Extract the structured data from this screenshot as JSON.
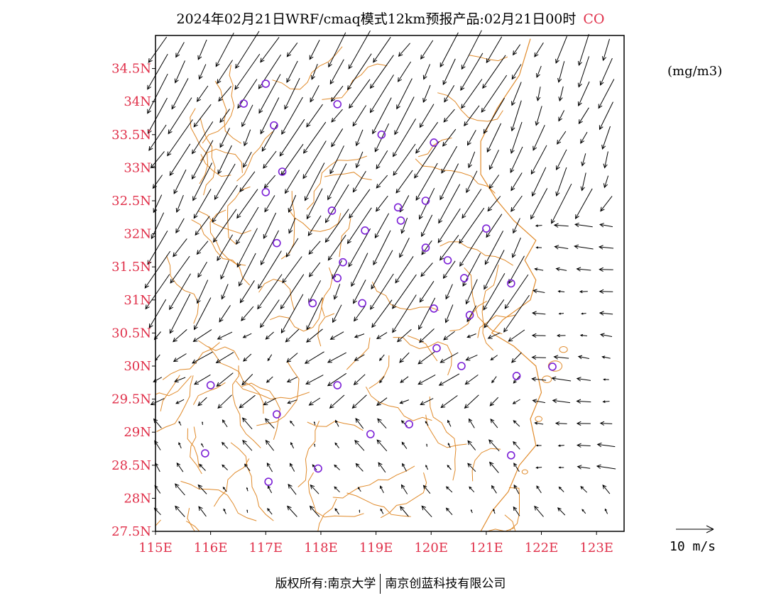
{
  "title": {
    "main": "2024年02月21日WRF/cmaq模式12km预报产品:02月21日00时",
    "species": "CO"
  },
  "unit_label": "(mg/m3)",
  "reference_vector": {
    "label": "10 m/s",
    "speed_ms": 10
  },
  "copyright": {
    "owner": "版权所有:南京大学",
    "partner": "南京创蓝科技有限公司"
  },
  "colors": {
    "axis_labels": "#e0304a",
    "boundaries": "#e08a2a",
    "stations": "#7b1fd6",
    "wind": "#000000"
  },
  "map": {
    "lon_range": [
      115,
      123.5
    ],
    "lat_range": [
      27.5,
      35.0
    ],
    "x_ticks": [
      {
        "value": 115,
        "label": "115E"
      },
      {
        "value": 116,
        "label": "116E"
      },
      {
        "value": 117,
        "label": "117E"
      },
      {
        "value": 118,
        "label": "118E"
      },
      {
        "value": 119,
        "label": "119E"
      },
      {
        "value": 120,
        "label": "120E"
      },
      {
        "value": 121,
        "label": "121E"
      },
      {
        "value": 122,
        "label": "122E"
      },
      {
        "value": 123,
        "label": "123E"
      }
    ],
    "y_ticks": [
      {
        "value": 27.5,
        "label": "27.5N"
      },
      {
        "value": 28,
        "label": "28N"
      },
      {
        "value": 28.5,
        "label": "28.5N"
      },
      {
        "value": 29,
        "label": "29N"
      },
      {
        "value": 29.5,
        "label": "29.5N"
      },
      {
        "value": 30,
        "label": "30N"
      },
      {
        "value": 30.5,
        "label": "30.5N"
      },
      {
        "value": 31,
        "label": "31N"
      },
      {
        "value": 31.5,
        "label": "31.5N"
      },
      {
        "value": 32,
        "label": "32N"
      },
      {
        "value": 32.5,
        "label": "32.5N"
      },
      {
        "value": 33,
        "label": "33N"
      },
      {
        "value": 33.5,
        "label": "33.5N"
      },
      {
        "value": 34,
        "label": "34N"
      },
      {
        "value": 34.5,
        "label": "34.5N"
      }
    ],
    "stations": [
      [
        117.0,
        34.27
      ],
      [
        116.6,
        33.97
      ],
      [
        118.3,
        33.96
      ],
      [
        117.15,
        33.64
      ],
      [
        119.1,
        33.5
      ],
      [
        120.05,
        33.38
      ],
      [
        117.3,
        32.94
      ],
      [
        117.0,
        32.63
      ],
      [
        118.2,
        32.35
      ],
      [
        119.4,
        32.4
      ],
      [
        119.9,
        32.5
      ],
      [
        119.45,
        32.2
      ],
      [
        118.8,
        32.05
      ],
      [
        121.0,
        32.08
      ],
      [
        117.2,
        31.86
      ],
      [
        119.9,
        31.79
      ],
      [
        118.4,
        31.57
      ],
      [
        120.3,
        31.6
      ],
      [
        118.3,
        31.33
      ],
      [
        120.6,
        31.33
      ],
      [
        121.45,
        31.25
      ],
      [
        117.85,
        30.95
      ],
      [
        118.75,
        30.95
      ],
      [
        120.05,
        30.87
      ],
      [
        120.7,
        30.77
      ],
      [
        120.1,
        30.27
      ],
      [
        120.55,
        30.0
      ],
      [
        121.55,
        29.85
      ],
      [
        122.2,
        29.99
      ],
      [
        116.0,
        29.71
      ],
      [
        118.3,
        29.71
      ],
      [
        117.2,
        29.27
      ],
      [
        119.6,
        29.12
      ],
      [
        118.9,
        28.97
      ],
      [
        115.9,
        28.68
      ],
      [
        121.45,
        28.65
      ],
      [
        117.95,
        28.45
      ],
      [
        117.05,
        28.25
      ]
    ]
  }
}
